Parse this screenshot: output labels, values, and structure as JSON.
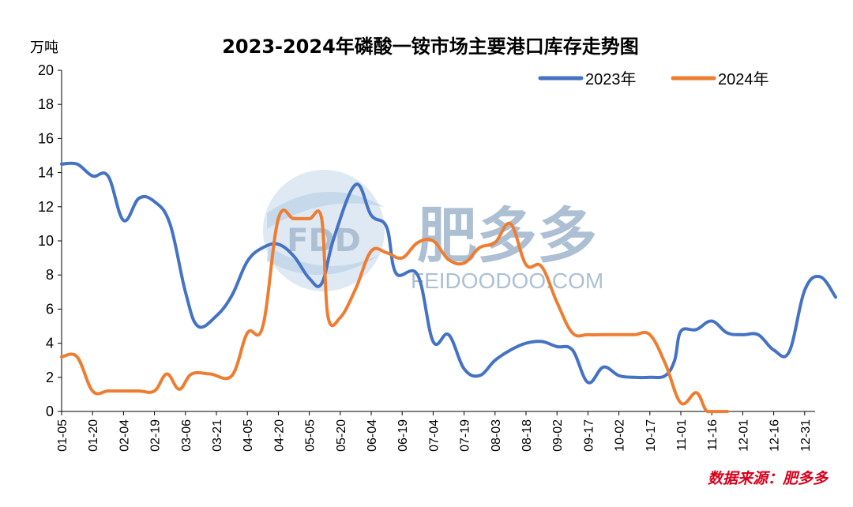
{
  "chart_data": {
    "type": "line",
    "title": "2023-2024年磷酸一铵市场主要港口库存走势图",
    "ylabel": "万吨",
    "xlabel": "",
    "ylim": [
      0,
      20
    ],
    "yticks": [
      0,
      2,
      4,
      6,
      8,
      10,
      12,
      14,
      16,
      18,
      20
    ],
    "categories": [
      "01-05",
      "01-20",
      "02-04",
      "02-19",
      "03-06",
      "03-21",
      "04-05",
      "04-20",
      "05-05",
      "05-20",
      "06-04",
      "06-19",
      "07-04",
      "07-19",
      "08-03",
      "08-18",
      "09-02",
      "09-17",
      "10-02",
      "10-17",
      "11-01",
      "11-16",
      "12-01",
      "12-16",
      "12-31"
    ],
    "legend_position": "top-right",
    "grid": false,
    "series": [
      {
        "name": "2023年",
        "color": "#4472c4",
        "points": [
          [
            0,
            14.5
          ],
          [
            0.5,
            14.5
          ],
          [
            1,
            13.8
          ],
          [
            1.5,
            13.8
          ],
          [
            2,
            11.2
          ],
          [
            2.5,
            12.5
          ],
          [
            3,
            12.3
          ],
          [
            3.5,
            11
          ],
          [
            4,
            7
          ],
          [
            4.4,
            5
          ],
          [
            5,
            5.6
          ],
          [
            5.5,
            6.8
          ],
          [
            6,
            8.8
          ],
          [
            6.5,
            9.6
          ],
          [
            7,
            9.8
          ],
          [
            7.5,
            9.1
          ],
          [
            8,
            7.8
          ],
          [
            8.4,
            7.5
          ],
          [
            8.8,
            10.2
          ],
          [
            9.5,
            13.3
          ],
          [
            10,
            11.5
          ],
          [
            10.5,
            10.8
          ],
          [
            10.8,
            8.1
          ],
          [
            11.5,
            8
          ],
          [
            12,
            4.1
          ],
          [
            12.5,
            4.5
          ],
          [
            13,
            2.5
          ],
          [
            13.5,
            2.1
          ],
          [
            14,
            3
          ],
          [
            14.5,
            3.6
          ],
          [
            15,
            4
          ],
          [
            15.5,
            4.1
          ],
          [
            16,
            3.8
          ],
          [
            16.5,
            3.6
          ],
          [
            17,
            1.7
          ],
          [
            17.5,
            2.6
          ],
          [
            18,
            2.1
          ],
          [
            18.5,
            2
          ],
          [
            19,
            2
          ],
          [
            19.5,
            2.1
          ],
          [
            19.8,
            3
          ],
          [
            20,
            4.7
          ],
          [
            20.5,
            4.8
          ],
          [
            21,
            5.3
          ],
          [
            21.5,
            4.6
          ],
          [
            22,
            4.5
          ],
          [
            22.5,
            4.5
          ],
          [
            23,
            3.6
          ],
          [
            23.5,
            3.5
          ],
          [
            24,
            7.1
          ],
          [
            24.5,
            7.9
          ],
          [
            25,
            6.7
          ]
        ]
      },
      {
        "name": "2024年",
        "color": "#ed7d31",
        "points": [
          [
            0,
            3.2
          ],
          [
            0.5,
            3.2
          ],
          [
            1,
            1.2
          ],
          [
            1.5,
            1.2
          ],
          [
            2,
            1.2
          ],
          [
            2.5,
            1.2
          ],
          [
            3,
            1.2
          ],
          [
            3.4,
            2.2
          ],
          [
            3.8,
            1.3
          ],
          [
            4.2,
            2.2
          ],
          [
            4.8,
            2.2
          ],
          [
            5.5,
            2.1
          ],
          [
            6,
            4.6
          ],
          [
            6.5,
            5
          ],
          [
            7,
            11.3
          ],
          [
            7.5,
            11.3
          ],
          [
            8,
            11.3
          ],
          [
            8.4,
            11.3
          ],
          [
            8.6,
            5.6
          ],
          [
            9,
            5.5
          ],
          [
            9.5,
            7.2
          ],
          [
            10,
            9.4
          ],
          [
            10.5,
            9.3
          ],
          [
            11,
            9
          ],
          [
            11.5,
            9.9
          ],
          [
            12,
            10
          ],
          [
            12.5,
            8.9
          ],
          [
            13,
            8.7
          ],
          [
            13.5,
            9.6
          ],
          [
            14,
            9.9
          ],
          [
            14.5,
            11
          ],
          [
            15,
            8.6
          ],
          [
            15.5,
            8.5
          ],
          [
            16,
            6.4
          ],
          [
            16.5,
            4.6
          ],
          [
            17,
            4.5
          ],
          [
            17.5,
            4.5
          ],
          [
            18,
            4.5
          ],
          [
            18.5,
            4.5
          ],
          [
            19,
            4.5
          ],
          [
            19.5,
            2.8
          ],
          [
            20,
            0.5
          ],
          [
            20.5,
            1.1
          ],
          [
            20.8,
            0.1
          ],
          [
            21,
            0
          ],
          [
            21.5,
            0
          ]
        ]
      }
    ]
  },
  "watermark": {
    "logo_text": "FDD",
    "brand_text": "肥多多",
    "url_text": "FEIDOODOO.COM"
  },
  "source_text": "数据来源：肥多多"
}
